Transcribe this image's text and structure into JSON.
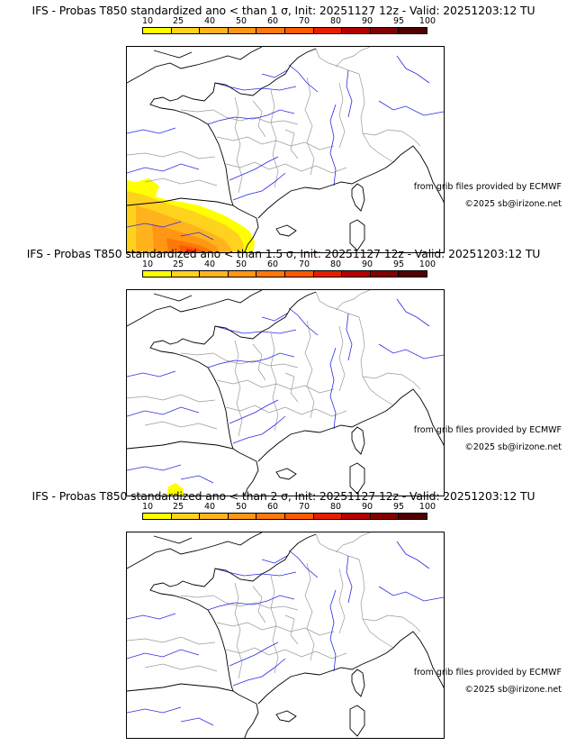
{
  "colors": {
    "scale": [
      "#ffff00",
      "#ffd21e",
      "#ffb41e",
      "#ff9614",
      "#ff780a",
      "#ff5a00",
      "#e61e00",
      "#b40000",
      "#820000",
      "#500000"
    ],
    "river": "#2a2ae6",
    "border": "#9a9a9a",
    "coast": "#000000"
  },
  "scale_ticks": [
    "10",
    "25",
    "40",
    "50",
    "60",
    "70",
    "80",
    "90",
    "95",
    "100"
  ],
  "panels": [
    {
      "title": "IFS - Probas T850  standardized ano < than 1 σ, Init: 20251127 12z - Valid: 20251203:12 TU",
      "credit_source": "from grib files provided by ECMWF",
      "credit_copyright": "©2025 sb@irizone.net",
      "probability_zone": "large"
    },
    {
      "title": "IFS - Probas T850  standardized ano < than 1.5 σ, Init: 20251127 12z - Valid: 20251203:12 TU",
      "credit_source": "from grib files provided by ECMWF",
      "credit_copyright": "©2025 sb@irizone.net",
      "probability_zone": "small"
    },
    {
      "title": "IFS - Probas T850  standardized ano < than 2 σ, Init: 20251127 12z - Valid: 20251203:12 TU",
      "credit_source": "from grib files provided by ECMWF",
      "credit_copyright": "©2025 sb@irizone.net",
      "probability_zone": "none"
    }
  ]
}
